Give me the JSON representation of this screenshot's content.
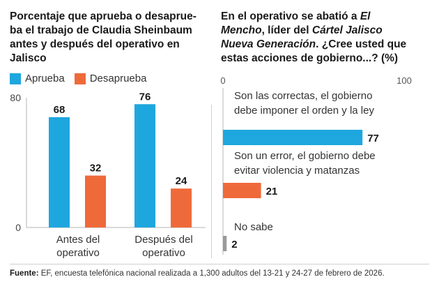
{
  "left_chart": {
    "title": "Porcentaje que aprueba o desaprueba el trabajo de Claudia Sheinbaum antes y después del operativo en Jalisco",
    "title_lines": [
      "Porcentaje que aprueba o desaprue-",
      "ba el trabajo de Claudia Sheinbaum",
      "antes y después del operativo en",
      "Jalisco"
    ],
    "legend": [
      {
        "label": "Aprueba",
        "color": "#1ea7de"
      },
      {
        "label": "Desaprueba",
        "color": "#ef6a3a"
      }
    ]
  },
  "right_chart": {
    "title_lines": [
      [
        {
          "t": "En el operativo se abatió a ",
          "i": false
        },
        {
          "t": "El",
          "i": true
        }
      ],
      [
        {
          "t": "Mencho",
          "i": true
        },
        {
          "t": ", líder del ",
          "i": false
        },
        {
          "t": "Cártel Jalisco",
          "i": true
        }
      ],
      [
        {
          "t": "Nueva Generación",
          "i": true
        },
        {
          "t": ". ¿Cree usted que",
          "i": false
        }
      ],
      [
        {
          "t": "estas acciones de gobierno...? (%)",
          "i": false
        }
      ]
    ]
  },
  "source": {
    "label": "Fuente:",
    "text": " EF, encuesta telefónica nacional realizada a 1,300 adultos del 13-21 y 24-27 de febrero de 2026."
  },
  "chart_data": [
    {
      "type": "bar",
      "categories": [
        "Antes del operativo",
        "Después del operativo"
      ],
      "category_lines": [
        [
          "Antes del",
          "operativo"
        ],
        [
          "Después del",
          "operativo"
        ]
      ],
      "series": [
        {
          "name": "Aprueba",
          "values": [
            68,
            76
          ],
          "color": "#1ea7de"
        },
        {
          "name": "Desaprueba",
          "values": [
            32,
            24
          ],
          "color": "#ef6a3a"
        }
      ],
      "ylim": [
        0,
        80
      ],
      "yticks": [
        0,
        80
      ],
      "grid": false,
      "legend": "top-left"
    },
    {
      "type": "bar",
      "orientation": "horizontal",
      "categories": [
        "Son las correctas, el gobierno debe imponer el orden y la ley",
        "Son un error, el gobierno debe evitar violencia y matanzas",
        "No sabe"
      ],
      "category_lines": [
        [
          "Son las correctas, el gobierno",
          "debe imponer el orden y la ley"
        ],
        [
          "Son un error, el gobierno debe",
          "evitar violencia y matanzas"
        ],
        [
          "No sabe"
        ]
      ],
      "values": [
        77,
        21,
        2
      ],
      "colors": [
        "#1ea7de",
        "#ef6a3a",
        "#9a9a9a"
      ],
      "xlim": [
        0,
        100
      ],
      "xticks": [
        0,
        100
      ]
    }
  ]
}
